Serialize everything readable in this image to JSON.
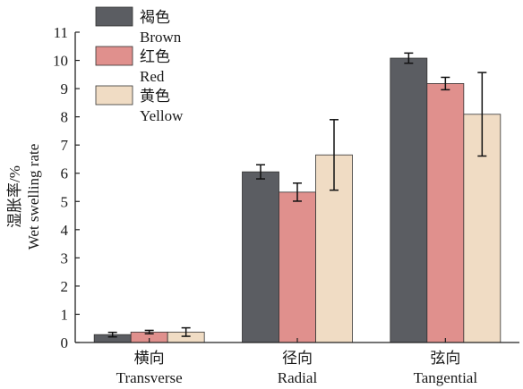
{
  "chart_data": {
    "type": "bar",
    "title": "",
    "ylabel_cn": "湿胀率/%",
    "ylabel_en": "Wet swelling rate",
    "ylim": [
      0,
      11
    ],
    "yticks": [
      0,
      1,
      2,
      3,
      4,
      5,
      6,
      7,
      8,
      9,
      10,
      11
    ],
    "categories": [
      {
        "cn": "横向",
        "en": "Transverse"
      },
      {
        "cn": "径向",
        "en": "Radial"
      },
      {
        "cn": "弦向",
        "en": "Tangential"
      }
    ],
    "series": [
      {
        "name_cn": "褐色",
        "name_en": "Brown",
        "color": "#5b5d62",
        "values": [
          0.28,
          6.05,
          10.08
        ],
        "errors": [
          0.08,
          0.25,
          0.18
        ]
      },
      {
        "name_cn": "红色",
        "name_en": "Red",
        "color": "#e0908d",
        "values": [
          0.37,
          5.33,
          9.18
        ],
        "errors": [
          0.06,
          0.32,
          0.22
        ]
      },
      {
        "name_cn": "黄色",
        "name_en": "Yellow",
        "color": "#f0dcc4",
        "values": [
          0.37,
          6.65,
          8.09
        ],
        "errors": [
          0.15,
          1.25,
          1.48
        ]
      }
    ],
    "legend_position": "top-left",
    "grid": false
  }
}
